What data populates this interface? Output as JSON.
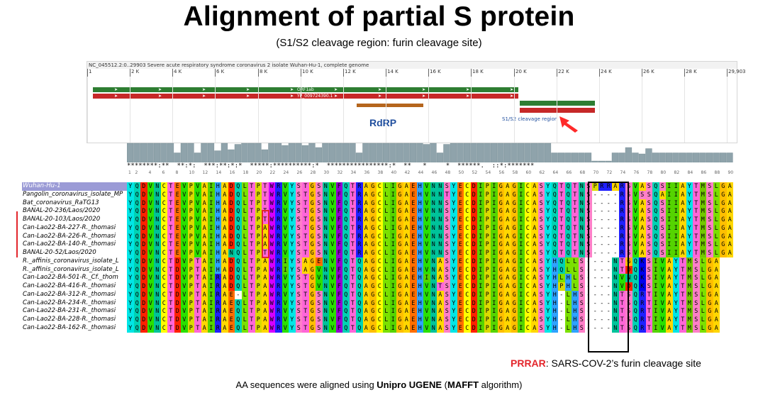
{
  "title": "Alignment of partial S protein",
  "subtitle": "(S1/S2 cleavage region: furin cleavage site)",
  "genome_view": {
    "header": "NC_045512.2:0..29903 Severe acute respiratory syndrome coronavirus 2 isolate Wuhan-Hu-1, complete genome",
    "ruler_ticks": [
      "1",
      "2 K",
      "4 K",
      "6 K",
      "8 K",
      "10 K",
      "12 K",
      "14 K",
      "16 K",
      "18 K",
      "20 K",
      "22 K",
      "24 K",
      "26 K",
      "28 K",
      "29,903"
    ],
    "orf1ab_label": "ORF1ab",
    "protein_label": "YP_009724390.1",
    "rdrp_label": "RdRP",
    "cleavage_label": "S1/S2 cleavage region",
    "colors": {
      "green_track": "#2e7d32",
      "red_track": "#c62828",
      "rdrp": "#b5651d",
      "arrow": "#ff2a2a"
    }
  },
  "conservation": {
    "stars": "********:**  **:*:  ***:**:*:*  *****:**********:*  ****************:*  **   *     *  ******.  ::*:*******"
  },
  "positions": [
    "1",
    "2",
    "4",
    "6",
    "8",
    "10",
    "12",
    "14",
    "16",
    "18",
    "20",
    "22",
    "24",
    "26",
    "28",
    "30",
    "32",
    "34",
    "36",
    "38",
    "40",
    "42",
    "44",
    "46",
    "48",
    "50",
    "52",
    "54",
    "56",
    "58",
    "60",
    "62",
    "64",
    "66",
    "68",
    "70",
    "72",
    "74",
    "76",
    "78",
    "80",
    "82",
    "84",
    "86",
    "88",
    "90"
  ],
  "alignment": {
    "names": [
      "Wuhan-Hu-1",
      "Pangolin_coronavirus_isolate_MP",
      "Bat_coronavirus_RaTG13",
      "BANAL-20-236/Laos/2020",
      "BANAL-20-103/Laos/2020",
      "Can-Lao22-BA-227-R._thomasi",
      "Can-Lao22-BA-226-R._thomasi",
      "Can-Lao22-BA-140-R._thomasi",
      "BANAL-20-52/Laos/2020",
      "R._affinis_coronavirus_isolate_L",
      "R._affinis_coronavirus_isolate_L",
      "Can-Lao22-BA-501-R._Cf._thom",
      "Can-Lao22-BA-416-R._thomasi",
      "Can-Lao22-BA-312-R._thomasi",
      "Can-Lao22-BA-234-R._thomasi",
      "Can-Lao22-BA-231-R._thomasi",
      "Can-Lao22-BA-228-R._thomasi",
      "Can-Lao22-BA-162-R._thomasi"
    ],
    "sequences": [
      "YQDVNCTEVPVAIHADQLTPTWRVYSTGSNVFQTRAGCLIGAEHVNNSYECDIPIGAGICASYQTQTNSPRRARSVASQSIIAYTMSLGA",
      "YQDVNCTEVPVAIHADQLTPTWRVYSTGSNVFQTRAGCLIGAEHVNNTYECDIPIGAGICASYQTQTNS----RSVSSQAIIAYTMSLGA",
      "YQDVNCTEVPVAIHADQLTPTWRVYSTGSNVFQTRAGCLIGAEHVNNSYECDIPIGAGICASYQTQTNS----RSVASQSIIAYTMSLGA",
      "YQDVNCTEVPVAIHADQLTPTWRVYSTGSNVFQTRAGCLIGAEHVNNSYECDIPIGAGICASYQTQTNS----RSVASQSIIAYTMSLGA",
      "YQDVNCTEVPVAIHADQLTPTWRVYSTGSNVFQTRAGCLIGAEHVNNSYECDIPIGAGICASYQTQTNS----RSVASQSIIAYTMSLGA",
      "YQDVNCTEVPVAIHADQLTPAWRVYSTGSNVFQTRAGCLIGAEHVNNSYECDIPIGAGICASYQTQTNS----RSVASQSIIAYTMSLGA",
      "YQDVNCTEVPVAIHADQLTPAWRVYSTGSNVFQTRAGCLIGAEHVNNSYECDIPIGAGICASYQTQTNS----RSVASQSIIAYTMSLGA",
      "YQDVNCTEVPVAIHADQLTPAWRVYSTGSNVFQTRAGCLIGAEHVNNSYECDIPIGAGICASYQTQTNS----RSVASQSIIAYTMSLGA",
      "YQDVNCTEVPVAIHANQLTPTWRVYSTGSNVFQTRAGCLIGAEHVNNSYECDIPIGAGICASYQTQTNS----RSVASQSIIAYTMSLGA",
      "YQDVNCTDVPTAIHADQLTPAWRIYSAGENVFQTQAGCLIGAEHVNASYECDIPIGAGICASYHQLLS----NTGQKSIVAYTMSLGA",
      "YQDVNCTDVPTAIHADQLTPAWRIYSAGVNVFQTQAGCLIGAEHVNASYECDIPIGAGICASYHQLLS----NTDQKSIVAYTMSLGA",
      "YQDVNCTDVPTAIRADQLTPAWRVYSTGVNVFQTQAGCLIGAEHINASYECDIPIGAGICASYHLHLS----NVNQKSIVAYTMSLGA",
      "YQDVNCTDVPTAIRADQLTPAWRVYSTGVNVFQTQAGCLIGAEHVNTSYECDIPIGAGICASYHPHLS----NVDQKSIVAYTMSLGA",
      "YQDVNCTDVPTAIRAE-LTPAWRVYSTGSNVFQTQAGCLIGAEHVNASYECDIPIGAGICASYH-LHS----NTSQRTIVAYTMSLGA",
      "YQDVNCTDVPTAIRAEQLTPAWRVYSTGSNVFQTQAGCLIGAEHVNASYECDIPIGAGICASYH-LHS----NTSQRTIVAYTMSLGA",
      "YQDVNCTDVPTAIRAEQLTPAWRVYSTGSNVFQTQAGCLIGAEHVNASYECDIPIGAGICASYH-LHS----NTSQRTIVAYTMSLGA",
      "YQDVNCTDVPTAIRAEQLTPAWRVYSTGSNVFQTQAGCLIGAEHVNASYECDIPIGAGICASYH-LHS----NTSQRTIVAYTMSLGA",
      "YQDVNCTDVPTAIRAEQLTPAWRVYSTGSNVFQTQAGCLIGAEHVNASYECDIPIGAGICASYH-LHS----NTSQRTIVAYTMSLGA"
    ],
    "aa_colors": {
      "A": "#ffd700",
      "C": "#ffff00",
      "D": "#ff2200",
      "E": "#ff6e00",
      "F": "#9400d3",
      "G": "#ffbf00",
      "H": "#2ea3ff",
      "I": "#55d400",
      "K": "#0000ee",
      "L": "#7be000",
      "M": "#73c800",
      "N": "#00c39a",
      "P": "#dada00",
      "Q": "#00d2b4",
      "R": "#2020ff",
      "S": "#ff7fc8",
      "T": "#ff66d8",
      "V": "#2ae000",
      "W": "#d400ff",
      "Y": "#00e6e6",
      "-": "#ffffff"
    }
  },
  "note": {
    "highlight": "PRRAR",
    "rest": ": SARS-COV-2’s furin cleavage site"
  },
  "footnote": {
    "pre": "AA sequences were aligned using ",
    "tool": "Unipro UGENE",
    "mid": " (",
    "algo": "MAFFT",
    "post": " algorithm)"
  }
}
